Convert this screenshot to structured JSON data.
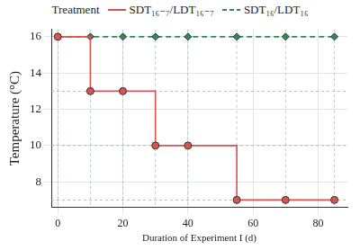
{
  "chart_data": {
    "type": "line",
    "x_label": "Duration of Experiment I (d)",
    "y_label": "Temperature (°C)",
    "legend_title": "Treatment",
    "legend": "top",
    "grid": true,
    "xlim": [
      -2,
      89
    ],
    "xticks": [
      0,
      20,
      40,
      60,
      80
    ],
    "ylim": [
      6.6,
      16.4
    ],
    "yticks": [
      8,
      10,
      12,
      14,
      16
    ],
    "sampling_days": [
      0,
      10,
      20,
      30,
      40,
      55,
      70,
      85
    ],
    "temperature_levels": [
      13,
      10,
      7
    ],
    "series": [
      {
        "name": "SDT₁₆₋₇/LDT₁₆₋₇",
        "color": "#d9534f",
        "line_style": "step",
        "marker": "circle",
        "x": [
          0,
          10,
          20,
          30,
          40,
          55,
          70,
          85
        ],
        "values": [
          16,
          13,
          13,
          10,
          10,
          7,
          7,
          7
        ]
      },
      {
        "name": "SDT₁₆/LDT₁₆",
        "color": "#2e8b57",
        "line_style": "dashed",
        "marker": "diamond",
        "x": [
          0,
          10,
          20,
          30,
          40,
          55,
          70,
          85
        ],
        "values": [
          16,
          16,
          16,
          16,
          16,
          16,
          16,
          16
        ]
      }
    ]
  }
}
